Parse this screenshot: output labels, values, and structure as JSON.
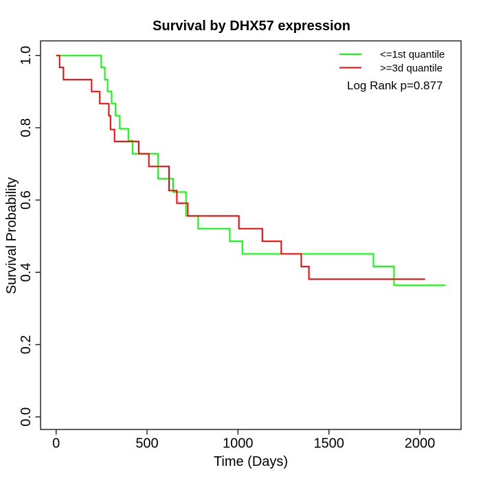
{
  "title": "Survival by DHX57 expression",
  "legend": {
    "items": [
      {
        "label": "<=1st quantile",
        "color": "#00ff00"
      },
      {
        "label": ">=3d quantile",
        "color": "#ff0000"
      }
    ],
    "note": "Log Rank p=0.877"
  },
  "chart_data": {
    "type": "line",
    "subtype": "kaplan-meier-step",
    "title": "Survival by DHX57 expression",
    "xlabel": "Time (Days)",
    "ylabel": "Survival Probability",
    "xlim": [
      0,
      2230
    ],
    "ylim": [
      0,
      1
    ],
    "xticks": [
      0,
      500,
      1000,
      1500,
      2000
    ],
    "xtick_labels": [
      "0",
      "500",
      "1000",
      "1500",
      "2000"
    ],
    "yticks": [
      0.0,
      0.2,
      0.4,
      0.6,
      0.8,
      1.0
    ],
    "ytick_labels": [
      "0.0",
      "0.2",
      "0.4",
      "0.6",
      "0.8",
      "1.0"
    ],
    "grid": false,
    "legend_position": "top-right",
    "annotations": [
      "Log Rank p=0.877"
    ],
    "series": [
      {
        "name": "<=1st quantile",
        "color": "#00ff00",
        "start": {
          "t": 0,
          "p": 1.0
        },
        "end_t": 2142,
        "drops": [
          [
            248,
            0.967
          ],
          [
            268,
            0.933
          ],
          [
            283,
            0.9
          ],
          [
            305,
            0.867
          ],
          [
            327,
            0.833
          ],
          [
            350,
            0.797
          ],
          [
            397,
            0.764
          ],
          [
            420,
            0.728
          ],
          [
            561,
            0.659
          ],
          [
            643,
            0.622
          ],
          [
            714,
            0.556
          ],
          [
            781,
            0.521
          ],
          [
            955,
            0.486
          ],
          [
            1024,
            0.451
          ],
          [
            1745,
            0.416
          ],
          [
            1858,
            0.364
          ]
        ]
      },
      {
        "name": ">=3d quantile",
        "color": "#ff0000",
        "start": {
          "t": 0,
          "p": 1.0
        },
        "end_t": 2029,
        "drops": [
          [
            19,
            0.967
          ],
          [
            40,
            0.933
          ],
          [
            195,
            0.9
          ],
          [
            240,
            0.867
          ],
          [
            290,
            0.833
          ],
          [
            299,
            0.795
          ],
          [
            321,
            0.762
          ],
          [
            454,
            0.728
          ],
          [
            510,
            0.693
          ],
          [
            621,
            0.626
          ],
          [
            664,
            0.591
          ],
          [
            724,
            0.556
          ],
          [
            1005,
            0.521
          ],
          [
            1134,
            0.486
          ],
          [
            1238,
            0.451
          ],
          [
            1348,
            0.416
          ],
          [
            1390,
            0.381
          ]
        ]
      }
    ]
  }
}
